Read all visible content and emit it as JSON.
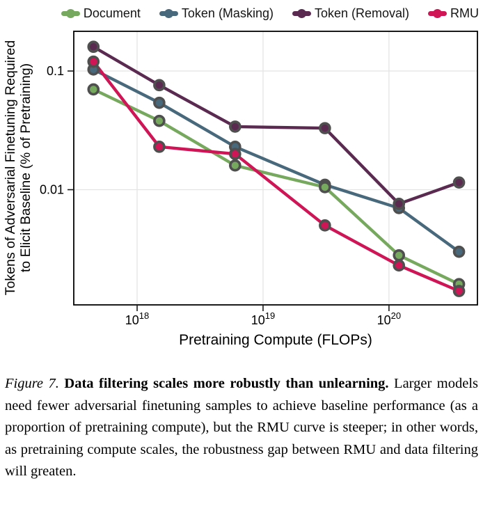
{
  "chart_data": {
    "type": "line",
    "x": [
      4.5e+17,
      1.5e+18,
      6e+18,
      3.1e+19,
      1.2e+20,
      3.6e+20
    ],
    "series": [
      {
        "name": "Document",
        "color": "#76a95e",
        "values": [
          0.07,
          0.038,
          0.016,
          0.0105,
          0.0028,
          0.0016
        ]
      },
      {
        "name": "Token (Masking)",
        "color": "#48697c",
        "values": [
          0.103,
          0.054,
          0.023,
          0.011,
          0.007,
          0.003
        ]
      },
      {
        "name": "Token (Removal)",
        "color": "#5a2a51",
        "values": [
          0.16,
          0.076,
          0.034,
          0.033,
          0.0076,
          0.0115
        ]
      },
      {
        "name": "RMU",
        "color": "#d01556",
        "values": [
          0.12,
          0.023,
          0.02,
          0.005,
          0.0023,
          0.0014
        ]
      }
    ],
    "xlabel": "Pretraining Compute (FLOPs)",
    "ylabel_lines": [
      "Tokens of Adversarial Finetuning Required",
      "to Elicit Baseline (% of Pretraining)"
    ],
    "x_ticks": [
      {
        "value": 1e+18,
        "base": "10",
        "exp": "18"
      },
      {
        "value": 1e+19,
        "base": "10",
        "exp": "19"
      },
      {
        "value": 1e+20,
        "base": "10",
        "exp": "20"
      }
    ],
    "y_ticks": [
      {
        "value": 0.1,
        "label": "0.1"
      },
      {
        "value": 0.01,
        "label": "0.01"
      }
    ],
    "x_scale": "log",
    "y_scale": "log",
    "xlim": [
      3.14e+17,
      5.04e+20
    ],
    "ylim": [
      0.00107,
      0.216
    ],
    "grid": true,
    "legend_position": "top",
    "styles": {
      "grid_color": "#e4e4e4",
      "frame_color": "#000000",
      "tick_color": "#1a1a1a",
      "marker_ring_color": "#4f4f4f"
    }
  },
  "caption": {
    "figure_label": "Figure 7.",
    "title": "Data filtering scales more robustly than unlearning.",
    "body": "Larger models need fewer adversarial finetuning samples to achieve baseline performance (as a proportion of pretraining compute), but the RMU curve is steeper; in other words, as pretraining compute scales, the robustness gap between RMU and data filtering will greaten."
  }
}
